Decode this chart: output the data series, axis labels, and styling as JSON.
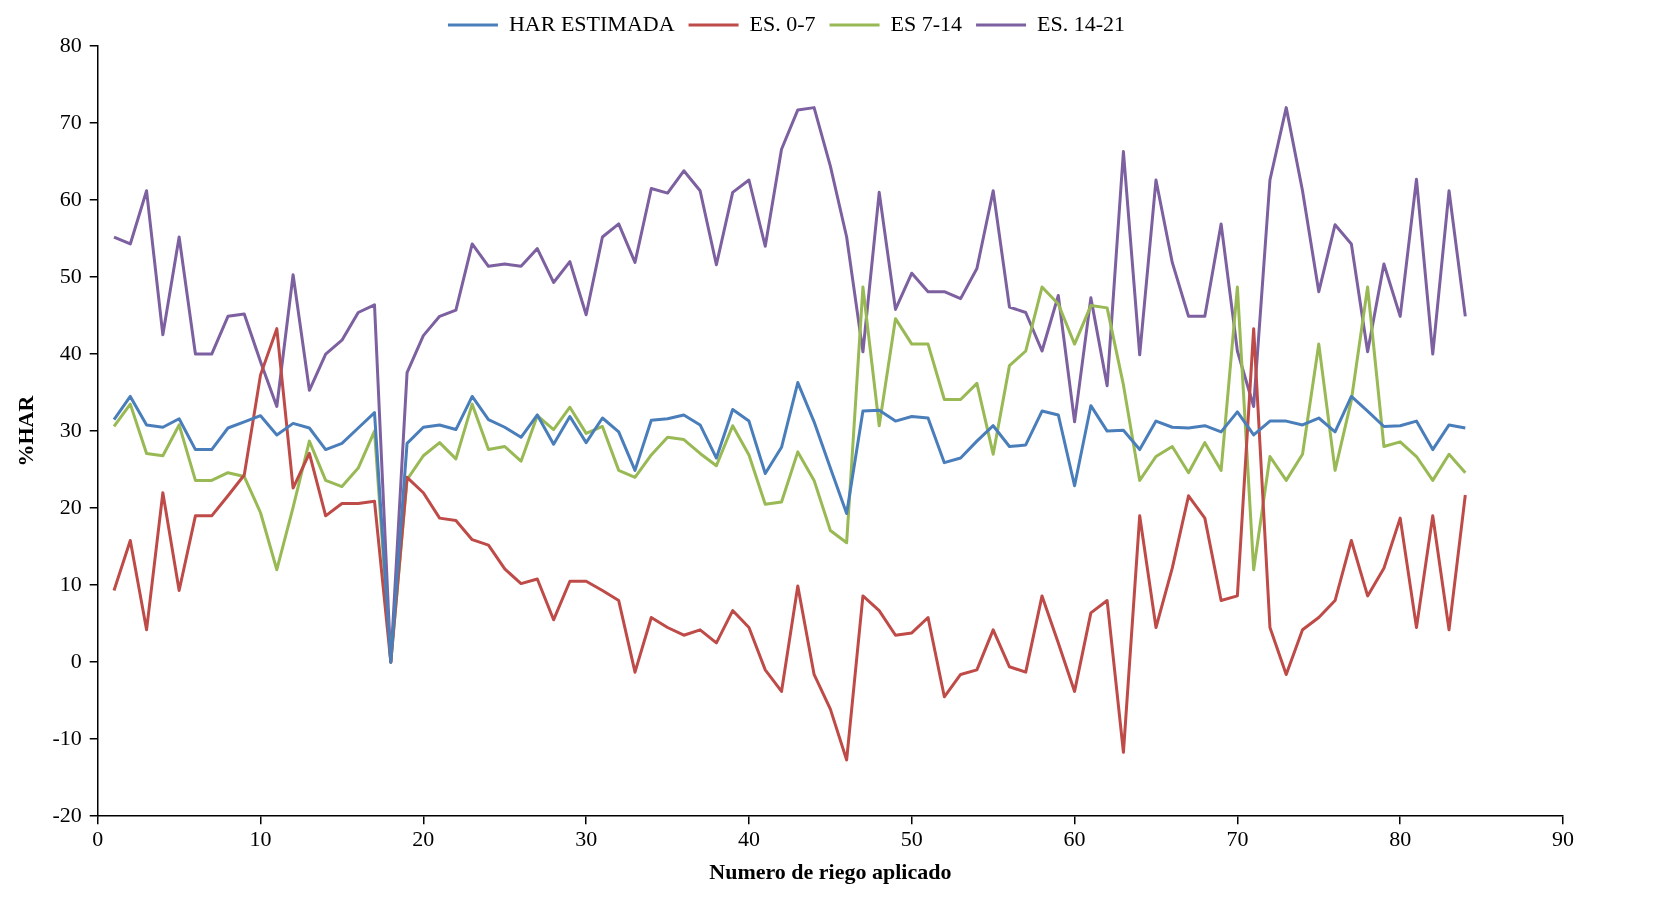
{
  "chart_data": {
    "type": "line",
    "xlabel": "Numero de riego aplicado",
    "ylabel": "%HAR",
    "x": [
      1,
      2,
      3,
      4,
      5,
      6,
      7,
      8,
      9,
      10,
      11,
      12,
      13,
      14,
      15,
      16,
      17,
      18,
      19,
      20,
      21,
      22,
      23,
      24,
      25,
      26,
      27,
      28,
      29,
      30,
      31,
      32,
      33,
      34,
      35,
      36,
      37,
      38,
      39,
      40,
      41,
      42,
      43,
      44,
      45,
      46,
      47,
      48,
      49,
      50,
      51,
      52,
      53,
      54,
      55,
      56,
      57,
      58,
      59,
      60,
      61,
      62,
      63,
      64,
      65,
      66,
      67,
      68,
      69,
      70,
      71,
      72,
      73,
      74,
      75,
      76,
      77,
      78,
      79,
      80,
      81,
      82,
      83,
      84
    ],
    "series": [
      {
        "name": "HAR ESTIMADA",
        "color": "#4a7ebb",
        "values": [
          31.5,
          34.5,
          30.8,
          30.5,
          31.6,
          27.6,
          27.6,
          30.4,
          31.2,
          32,
          29.5,
          31,
          30.4,
          27.6,
          28.4,
          30.4,
          32.4,
          0,
          28.4,
          30.5,
          30.8,
          30.2,
          34.5,
          31.5,
          30.5,
          29.2,
          32.1,
          28.3,
          31.9,
          28.5,
          31.7,
          29.9,
          24.9,
          31.4,
          31.6,
          32.1,
          30.8,
          26.5,
          32.8,
          31.3,
          24.5,
          27.9,
          36.3,
          31.2,
          25.2,
          19.3,
          32.6,
          32.7,
          31.3,
          31.9,
          31.7,
          25.9,
          26.5,
          28.7,
          30.7,
          28,
          28.2,
          32.6,
          32.1,
          22.9,
          33.3,
          30,
          30.1,
          27.6,
          31.3,
          30.5,
          30.4,
          30.7,
          29.9,
          32.5,
          29.5,
          31.3,
          31.3,
          30.8,
          31.7,
          29.9,
          34.5,
          32.6,
          30.6,
          30.7,
          31.3,
          27.6,
          30.8,
          30.4
        ]
      },
      {
        "name": "ES. 0-7",
        "color": "#be4b48",
        "values": [
          9.3,
          15.8,
          4.2,
          22,
          9.3,
          19,
          19,
          21.6,
          24.3,
          37.3,
          43.3,
          22.6,
          27.1,
          19,
          20.6,
          20.6,
          20.9,
          0,
          24,
          22,
          18.7,
          18.4,
          15.9,
          15.2,
          12.1,
          10.2,
          10.8,
          5.5,
          10.5,
          10.5,
          9.3,
          8,
          -1.3,
          5.8,
          4.5,
          3.5,
          4.2,
          2.5,
          6.7,
          4.5,
          -1,
          -3.8,
          9.9,
          -1.6,
          -6.1,
          -12.7,
          8.6,
          6.7,
          3.5,
          3.8,
          5.8,
          -4.5,
          -1.6,
          -1,
          4.2,
          -0.6,
          -1.3,
          8.6,
          2.5,
          -3.8,
          6.4,
          8,
          -11.7,
          19,
          4.5,
          12.2,
          21.6,
          18.7,
          8,
          8.6,
          43.3,
          4.5,
          -1.6,
          4.2,
          5.8,
          8,
          15.8,
          8.6,
          12.2,
          18.7,
          4.5,
          19,
          4.2,
          21.7
        ]
      },
      {
        "name": "ES 7-14",
        "color": "#98b954",
        "values": [
          30.6,
          33.5,
          27.1,
          26.8,
          30.8,
          23.6,
          23.6,
          24.6,
          24.1,
          19.4,
          12,
          20.1,
          28.7,
          23.6,
          22.8,
          25.2,
          30,
          0,
          23.7,
          26.8,
          28.5,
          26.4,
          33.5,
          27.6,
          28,
          26.1,
          32,
          30.2,
          33.1,
          29.7,
          30.6,
          24.9,
          24,
          26.9,
          29.2,
          28.9,
          27.1,
          25.5,
          30.7,
          26.9,
          20.5,
          20.8,
          27.3,
          23.6,
          17.1,
          15.5,
          48.7,
          30.7,
          44.6,
          41.3,
          41.3,
          34.1,
          34.1,
          36.2,
          27,
          38.5,
          40.4,
          48.7,
          46.5,
          41.3,
          46.3,
          46,
          36,
          23.6,
          26.7,
          28,
          24.6,
          28.5,
          24.9,
          48.7,
          12,
          26.7,
          23.6,
          27,
          41.3,
          24.9,
          34,
          48.7,
          28,
          28.6,
          26.7,
          23.6,
          27,
          24.6
        ]
      },
      {
        "name": "ES. 14-21",
        "color": "#7d60a0",
        "values": [
          55.2,
          54.3,
          61.2,
          42.5,
          55.2,
          40,
          40,
          44.9,
          45.2,
          39,
          33.2,
          50.3,
          35.3,
          40,
          41.8,
          45.4,
          46.4,
          0,
          37.6,
          42.4,
          44.9,
          45.7,
          54.3,
          51.4,
          51.7,
          51.4,
          53.7,
          49.3,
          52,
          45.1,
          55.2,
          56.9,
          51.9,
          61.5,
          60.9,
          63.8,
          61.2,
          51.6,
          61,
          62.6,
          54,
          66.6,
          71.7,
          72,
          64.4,
          55.2,
          40.3,
          61,
          45.8,
          50.5,
          48.1,
          48.1,
          47.2,
          51.1,
          61.2,
          46.1,
          45.4,
          40.4,
          47.6,
          31.2,
          47.3,
          35.9,
          66.3,
          39.9,
          62.6,
          51.9,
          44.9,
          44.9,
          56.9,
          40.4,
          33.2,
          62.6,
          72,
          61.2,
          48.1,
          56.8,
          54.3,
          40.3,
          51.7,
          44.9,
          62.7,
          40,
          61.2,
          44.9
        ]
      }
    ],
    "xlim": [
      0,
      90
    ],
    "xticks": [
      0,
      10,
      20,
      30,
      40,
      50,
      60,
      70,
      80,
      90
    ],
    "ylim": [
      -20,
      80
    ],
    "yticks": [
      -20,
      -10,
      0,
      10,
      20,
      30,
      40,
      50,
      60,
      70,
      80
    ],
    "grid": false,
    "legend": "top",
    "marker": "none",
    "line_style": "solid"
  }
}
